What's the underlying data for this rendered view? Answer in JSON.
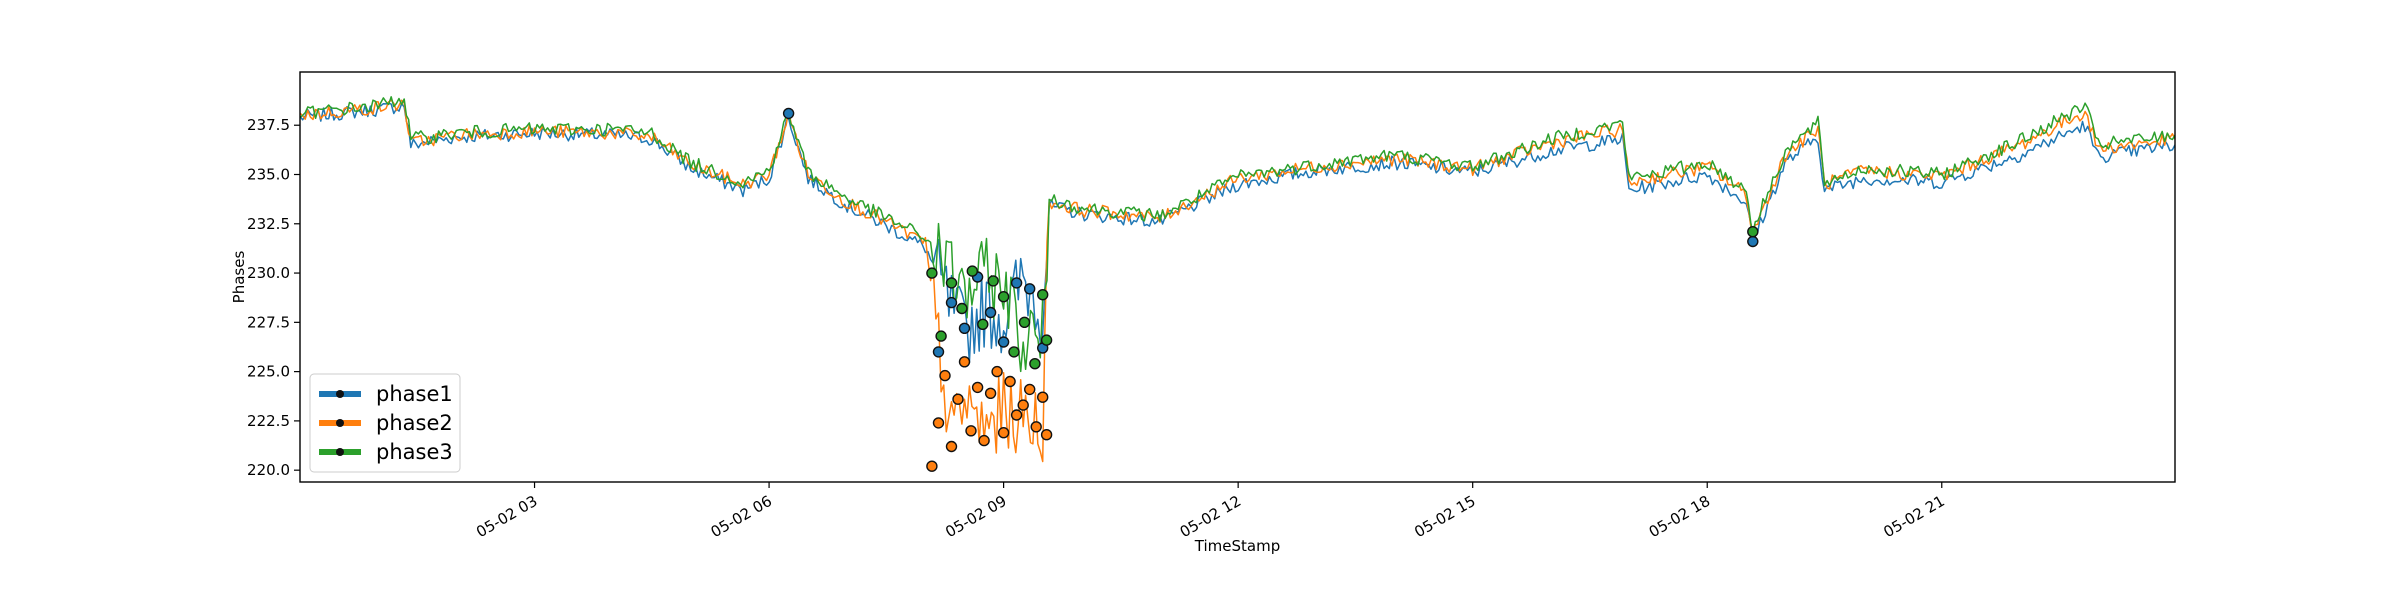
{
  "chart_data": {
    "type": "line",
    "xlabel": "TimeStamp",
    "ylabel": "Phases",
    "x_range": [
      "05-02 00:00",
      "05-02 23:59"
    ],
    "ylim": [
      219.4,
      240.2
    ],
    "x_ticks": [
      "05-02 03",
      "05-02 06",
      "05-02 09",
      "05-02 12",
      "05-02 15",
      "05-02 18",
      "05-02 21"
    ],
    "y_ticks": [
      "220.0",
      "222.5",
      "225.0",
      "227.5",
      "230.0",
      "232.5",
      "235.0",
      "237.5"
    ],
    "grid": false,
    "legend_position": "lower left",
    "series": [
      {
        "name": "phase1",
        "color": "#1f77b4",
        "x": [
          "05-02 00:00",
          "05-02 00:30",
          "05-02 01:00",
          "05-02 01:20",
          "05-02 01:25",
          "05-02 02:00",
          "05-02 03:00",
          "05-02 04:00",
          "05-02 04:30",
          "05-02 05:00",
          "05-02 05:40",
          "05-02 06:00",
          "05-02 06:15",
          "05-02 06:30",
          "05-02 07:00",
          "05-02 07:30",
          "05-02 08:00",
          "05-02 08:20",
          "05-02 08:30",
          "05-02 08:45",
          "05-02 09:00",
          "05-02 09:15",
          "05-02 09:30",
          "05-02 09:35",
          "05-02 10:00",
          "05-02 11:00",
          "05-02 12:00",
          "05-02 13:00",
          "05-02 14:00",
          "05-02 15:00",
          "05-02 16:00",
          "05-02 16:55",
          "05-02 17:00",
          "05-02 18:00",
          "05-02 18:30",
          "05-02 18:35",
          "05-02 19:00",
          "05-02 19:25",
          "05-02 19:30",
          "05-02 20:00",
          "05-02 21:00",
          "05-02 22:00",
          "05-02 22:50",
          "05-02 23:00",
          "05-02 23:59"
        ],
        "y": [
          237.9,
          238.1,
          238.3,
          238.5,
          236.5,
          236.9,
          237.1,
          237.0,
          236.8,
          235.3,
          234.2,
          234.8,
          237.9,
          234.8,
          233.4,
          232.4,
          231.3,
          228.2,
          227.0,
          228.2,
          227.7,
          229.7,
          228.2,
          233.4,
          233.0,
          232.6,
          234.5,
          235.2,
          235.6,
          235.1,
          236.2,
          236.8,
          234.2,
          235.0,
          233.6,
          231.6,
          235.6,
          236.9,
          234.2,
          234.8,
          234.6,
          236.0,
          237.5,
          235.9,
          236.5
        ]
      },
      {
        "name": "phase2",
        "color": "#ff7f0e",
        "x": [
          "05-02 00:00",
          "05-02 00:30",
          "05-02 01:00",
          "05-02 01:20",
          "05-02 01:25",
          "05-02 02:00",
          "05-02 03:00",
          "05-02 04:00",
          "05-02 04:30",
          "05-02 05:00",
          "05-02 05:40",
          "05-02 06:00",
          "05-02 06:15",
          "05-02 06:30",
          "05-02 07:00",
          "05-02 07:30",
          "05-02 08:00",
          "05-02 08:20",
          "05-02 08:30",
          "05-02 08:45",
          "05-02 09:00",
          "05-02 09:15",
          "05-02 09:30",
          "05-02 09:35",
          "05-02 10:00",
          "05-02 11:00",
          "05-02 12:00",
          "05-02 13:00",
          "05-02 14:00",
          "05-02 15:00",
          "05-02 16:00",
          "05-02 16:55",
          "05-02 17:00",
          "05-02 18:00",
          "05-02 18:30",
          "05-02 18:35",
          "05-02 19:00",
          "05-02 19:25",
          "05-02 19:30",
          "05-02 20:00",
          "05-02 21:00",
          "05-02 22:00",
          "05-02 22:50",
          "05-02 23:00",
          "05-02 23:59"
        ],
        "y": [
          238.0,
          238.2,
          238.4,
          238.6,
          236.6,
          237.0,
          237.2,
          237.1,
          236.9,
          235.5,
          234.5,
          235.0,
          238.0,
          235.0,
          233.6,
          232.6,
          231.5,
          221.6,
          223.5,
          222.0,
          223.0,
          222.6,
          222.4,
          233.6,
          233.2,
          232.8,
          234.8,
          235.4,
          235.8,
          235.3,
          236.6,
          237.3,
          234.6,
          235.4,
          234.0,
          232.0,
          236.0,
          237.3,
          234.5,
          235.2,
          234.9,
          236.5,
          238.2,
          236.3,
          236.8
        ]
      },
      {
        "name": "phase3",
        "color": "#2ca02c",
        "x": [
          "05-02 00:00",
          "05-02 00:30",
          "05-02 01:00",
          "05-02 01:20",
          "05-02 01:25",
          "05-02 02:00",
          "05-02 03:00",
          "05-02 04:00",
          "05-02 04:30",
          "05-02 05:00",
          "05-02 05:40",
          "05-02 06:00",
          "05-02 06:15",
          "05-02 06:30",
          "05-02 07:00",
          "05-02 07:30",
          "05-02 08:00",
          "05-02 08:20",
          "05-02 08:30",
          "05-02 08:45",
          "05-02 09:00",
          "05-02 09:15",
          "05-02 09:30",
          "05-02 09:35",
          "05-02 10:00",
          "05-02 11:00",
          "05-02 12:00",
          "05-02 13:00",
          "05-02 14:00",
          "05-02 15:00",
          "05-02 16:00",
          "05-02 16:55",
          "05-02 17:00",
          "05-02 18:00",
          "05-02 18:30",
          "05-02 18:35",
          "05-02 19:00",
          "05-02 19:25",
          "05-02 19:30",
          "05-02 20:00",
          "05-02 21:00",
          "05-02 22:00",
          "05-02 22:50",
          "05-02 23:00",
          "05-02 23:59"
        ],
        "y": [
          238.1,
          238.3,
          238.5,
          238.9,
          236.8,
          237.1,
          237.3,
          237.3,
          237.1,
          235.6,
          234.6,
          235.2,
          238.1,
          235.1,
          233.8,
          232.8,
          231.8,
          230.0,
          229.0,
          229.8,
          229.5,
          226.5,
          226.8,
          233.8,
          233.3,
          232.9,
          234.9,
          235.5,
          236.0,
          235.4,
          236.8,
          237.6,
          234.8,
          235.6,
          234.2,
          232.2,
          236.2,
          237.6,
          234.6,
          235.3,
          235.0,
          236.7,
          238.5,
          236.5,
          237.0
        ]
      }
    ],
    "anomaly_points": {
      "phase1": {
        "x": [
          "05-02 06:15",
          "05-02 08:10",
          "05-02 08:20",
          "05-02 08:30",
          "05-02 08:40",
          "05-02 08:50",
          "05-02 09:00",
          "05-02 09:10",
          "05-02 09:20",
          "05-02 09:30",
          "05-02 18:35"
        ],
        "y": [
          238.1,
          226.0,
          228.5,
          227.2,
          229.8,
          228.0,
          226.5,
          229.5,
          229.2,
          226.2,
          231.6
        ]
      },
      "phase2": {
        "x": [
          "05-02 08:05",
          "05-02 08:10",
          "05-02 08:15",
          "05-02 08:20",
          "05-02 08:25",
          "05-02 08:30",
          "05-02 08:35",
          "05-02 08:40",
          "05-02 08:45",
          "05-02 08:50",
          "05-02 08:55",
          "05-02 09:00",
          "05-02 09:05",
          "05-02 09:10",
          "05-02 09:15",
          "05-02 09:20",
          "05-02 09:25",
          "05-02 09:30",
          "05-02 09:33"
        ],
        "y": [
          220.2,
          222.4,
          224.8,
          221.2,
          223.6,
          225.5,
          222.0,
          224.2,
          221.5,
          223.9,
          225.0,
          221.9,
          224.5,
          222.8,
          223.3,
          224.1,
          222.2,
          223.7,
          221.8
        ]
      },
      "phase3": {
        "x": [
          "05-02 08:05",
          "05-02 08:12",
          "05-02 08:20",
          "05-02 08:28",
          "05-02 08:36",
          "05-02 08:44",
          "05-02 08:52",
          "05-02 09:00",
          "05-02 09:08",
          "05-02 09:16",
          "05-02 09:24",
          "05-02 09:30",
          "05-02 09:33",
          "05-02 18:35"
        ],
        "y": [
          230.0,
          226.8,
          229.5,
          228.2,
          230.1,
          227.4,
          229.6,
          228.8,
          226.0,
          227.5,
          225.4,
          228.9,
          226.6,
          232.1
        ]
      }
    }
  }
}
